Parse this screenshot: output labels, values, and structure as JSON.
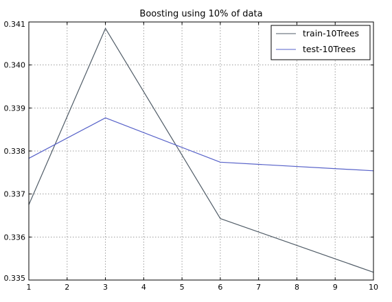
{
  "chart_data": {
    "type": "line",
    "title": "Boosting using 10% of data",
    "xlabel": "",
    "ylabel": "",
    "xlim": [
      1,
      10
    ],
    "ylim": [
      0.335,
      0.341
    ],
    "xticks": [
      "1",
      "2",
      "3",
      "4",
      "5",
      "6",
      "7",
      "8",
      "9",
      "10"
    ],
    "yticks": [
      "0.335",
      "0.336",
      "0.337",
      "0.338",
      "0.339",
      "0.340",
      "0.341"
    ],
    "grid": true,
    "legend_position": "top-right",
    "series": [
      {
        "name": "train-10Trees",
        "color": "#4f5b66",
        "x": [
          1,
          3,
          6,
          10
        ],
        "y": [
          0.33675,
          0.34085,
          0.33643,
          0.33518
        ]
      },
      {
        "name": "test-10Trees",
        "color": "#5560c8",
        "x": [
          1,
          3,
          6,
          10
        ],
        "y": [
          0.33783,
          0.33877,
          0.33774,
          0.33754
        ]
      }
    ]
  }
}
